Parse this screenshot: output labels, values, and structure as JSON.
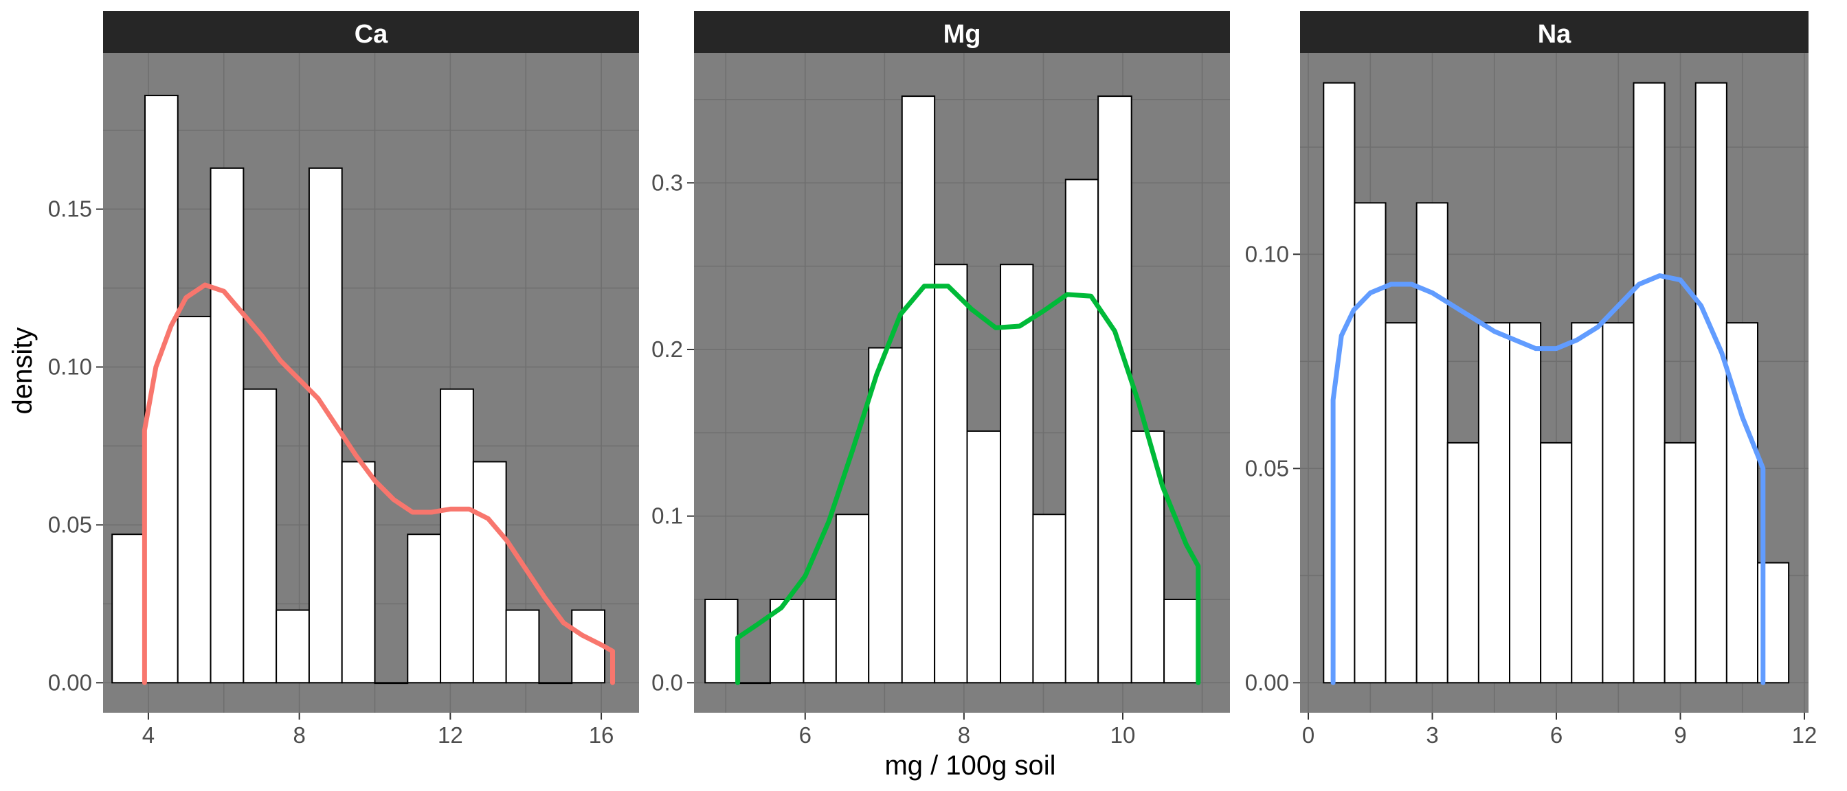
{
  "chart_data": {
    "type": "histogram",
    "xlabel": "mg / 100g soil",
    "ylabel": "density",
    "grid": true,
    "panel_background": "#7f7f7f",
    "grid_color": "#6f6f6f",
    "strip_background": "#262626",
    "bar_fill": "#ffffff",
    "bar_outline": "#000000",
    "panels": [
      {
        "label": "Ca",
        "color": "#F8766D",
        "xlim": [
          2.8,
          17.0
        ],
        "ylim": [
          -0.0095,
          0.1995
        ],
        "x_ticks": [
          4,
          8,
          12,
          16
        ],
        "x_tick_labels": [
          "4",
          "8",
          "12",
          "16"
        ],
        "y_ticks": [
          0.0,
          0.05,
          0.1,
          0.15
        ],
        "y_tick_labels": [
          "0.00",
          "0.05",
          "0.10",
          "0.15"
        ],
        "bin_width": 0.87,
        "bins": [
          {
            "x_min": 3.04,
            "x_max": 3.91,
            "density": 0.047
          },
          {
            "x_min": 3.91,
            "x_max": 4.78,
            "density": 0.186
          },
          {
            "x_min": 4.78,
            "x_max": 5.65,
            "density": 0.116
          },
          {
            "x_min": 5.65,
            "x_max": 6.52,
            "density": 0.163
          },
          {
            "x_min": 6.52,
            "x_max": 7.39,
            "density": 0.093
          },
          {
            "x_min": 7.39,
            "x_max": 8.26,
            "density": 0.023
          },
          {
            "x_min": 8.26,
            "x_max": 9.13,
            "density": 0.163
          },
          {
            "x_min": 9.13,
            "x_max": 10.0,
            "density": 0.07
          },
          {
            "x_min": 10.0,
            "x_max": 10.87,
            "density": 0.0
          },
          {
            "x_min": 10.87,
            "x_max": 11.74,
            "density": 0.047
          },
          {
            "x_min": 11.74,
            "x_max": 12.61,
            "density": 0.093
          },
          {
            "x_min": 12.61,
            "x_max": 13.48,
            "density": 0.07
          },
          {
            "x_min": 13.48,
            "x_max": 14.35,
            "density": 0.023
          },
          {
            "x_min": 14.35,
            "x_max": 15.22,
            "density": 0.0
          },
          {
            "x_min": 15.22,
            "x_max": 16.09,
            "density": 0.023
          }
        ],
        "density_curve": {
          "x": [
            3.9,
            3.9,
            4.2,
            4.6,
            5.0,
            5.5,
            6.0,
            6.5,
            7.0,
            7.5,
            8.0,
            8.5,
            9.0,
            9.5,
            10.0,
            10.5,
            11.0,
            11.5,
            12.0,
            12.5,
            13.0,
            13.5,
            14.0,
            14.5,
            15.0,
            15.5,
            16.0,
            16.3,
            16.3
          ],
          "y": [
            0.0,
            0.08,
            0.1,
            0.113,
            0.122,
            0.126,
            0.124,
            0.117,
            0.11,
            0.102,
            0.096,
            0.09,
            0.081,
            0.072,
            0.064,
            0.058,
            0.054,
            0.054,
            0.055,
            0.055,
            0.052,
            0.045,
            0.036,
            0.027,
            0.019,
            0.015,
            0.012,
            0.01,
            0.0
          ]
        }
      },
      {
        "label": "Mg",
        "color": "#00BA38",
        "xlim": [
          4.6,
          11.35
        ],
        "ylim": [
          -0.018,
          0.378
        ],
        "x_ticks": [
          6,
          8,
          10
        ],
        "x_tick_labels": [
          "6",
          "8",
          "10"
        ],
        "y_ticks": [
          0.0,
          0.1,
          0.2,
          0.3
        ],
        "y_tick_labels": [
          "0.0",
          "0.1",
          "0.2",
          "0.3"
        ],
        "bin_width": 0.413,
        "bins": [
          {
            "x_min": 4.74,
            "x_max": 5.15,
            "density": 0.05
          },
          {
            "x_min": 5.15,
            "x_max": 5.56,
            "density": 0.0
          },
          {
            "x_min": 5.56,
            "x_max": 5.98,
            "density": 0.05
          },
          {
            "x_min": 5.98,
            "x_max": 6.39,
            "density": 0.05
          },
          {
            "x_min": 6.39,
            "x_max": 6.8,
            "density": 0.101
          },
          {
            "x_min": 6.8,
            "x_max": 7.22,
            "density": 0.201
          },
          {
            "x_min": 7.22,
            "x_max": 7.63,
            "density": 0.352
          },
          {
            "x_min": 7.63,
            "x_max": 8.04,
            "density": 0.251
          },
          {
            "x_min": 8.04,
            "x_max": 8.46,
            "density": 0.151
          },
          {
            "x_min": 8.46,
            "x_max": 8.87,
            "density": 0.251
          },
          {
            "x_min": 8.87,
            "x_max": 9.28,
            "density": 0.101
          },
          {
            "x_min": 9.28,
            "x_max": 9.69,
            "density": 0.302
          },
          {
            "x_min": 9.69,
            "x_max": 10.11,
            "density": 0.352
          },
          {
            "x_min": 10.11,
            "x_max": 10.52,
            "density": 0.151
          },
          {
            "x_min": 10.52,
            "x_max": 10.93,
            "density": 0.05
          }
        ],
        "density_curve": {
          "x": [
            5.15,
            5.15,
            5.4,
            5.7,
            6.0,
            6.3,
            6.6,
            6.9,
            7.2,
            7.5,
            7.8,
            8.1,
            8.4,
            8.7,
            9.0,
            9.3,
            9.6,
            9.9,
            10.2,
            10.5,
            10.8,
            10.95,
            10.95
          ],
          "y": [
            0.0,
            0.027,
            0.035,
            0.045,
            0.064,
            0.097,
            0.14,
            0.185,
            0.221,
            0.238,
            0.238,
            0.224,
            0.213,
            0.214,
            0.223,
            0.233,
            0.232,
            0.211,
            0.168,
            0.118,
            0.083,
            0.07,
            0.0
          ]
        }
      },
      {
        "label": "Na",
        "color": "#619CFF",
        "xlim": [
          -0.2,
          12.1
        ],
        "ylim": [
          -0.007,
          0.147
        ],
        "x_ticks": [
          0,
          3,
          6,
          9,
          12
        ],
        "x_tick_labels": [
          "0",
          "3",
          "6",
          "9",
          "12"
        ],
        "y_ticks": [
          0.0,
          0.05,
          0.1
        ],
        "y_tick_labels": [
          "0.00",
          "0.05",
          "0.10"
        ],
        "bin_width": 0.75,
        "bins": [
          {
            "x_min": 0.37,
            "x_max": 1.12,
            "density": 0.14
          },
          {
            "x_min": 1.12,
            "x_max": 1.87,
            "density": 0.112
          },
          {
            "x_min": 1.87,
            "x_max": 2.62,
            "density": 0.084
          },
          {
            "x_min": 2.62,
            "x_max": 3.37,
            "density": 0.112
          },
          {
            "x_min": 3.37,
            "x_max": 4.12,
            "density": 0.056
          },
          {
            "x_min": 4.12,
            "x_max": 4.87,
            "density": 0.084
          },
          {
            "x_min": 4.87,
            "x_max": 5.62,
            "density": 0.084
          },
          {
            "x_min": 5.62,
            "x_max": 6.37,
            "density": 0.056
          },
          {
            "x_min": 6.37,
            "x_max": 7.12,
            "density": 0.084
          },
          {
            "x_min": 7.12,
            "x_max": 7.87,
            "density": 0.084
          },
          {
            "x_min": 7.87,
            "x_max": 8.62,
            "density": 0.14
          },
          {
            "x_min": 8.62,
            "x_max": 9.37,
            "density": 0.056
          },
          {
            "x_min": 9.37,
            "x_max": 10.12,
            "density": 0.14
          },
          {
            "x_min": 10.12,
            "x_max": 10.87,
            "density": 0.084
          },
          {
            "x_min": 10.87,
            "x_max": 11.62,
            "density": 0.028
          }
        ],
        "density_curve": {
          "x": [
            0.6,
            0.6,
            0.8,
            1.1,
            1.5,
            2.0,
            2.5,
            3.0,
            3.5,
            4.0,
            4.5,
            5.0,
            5.5,
            6.0,
            6.5,
            7.0,
            7.5,
            8.0,
            8.5,
            9.0,
            9.5,
            10.0,
            10.5,
            11.0,
            11.0
          ],
          "y": [
            0.0,
            0.066,
            0.081,
            0.087,
            0.091,
            0.093,
            0.093,
            0.091,
            0.088,
            0.085,
            0.082,
            0.08,
            0.078,
            0.078,
            0.08,
            0.083,
            0.088,
            0.093,
            0.095,
            0.094,
            0.088,
            0.077,
            0.062,
            0.05,
            0.0
          ]
        }
      }
    ]
  }
}
